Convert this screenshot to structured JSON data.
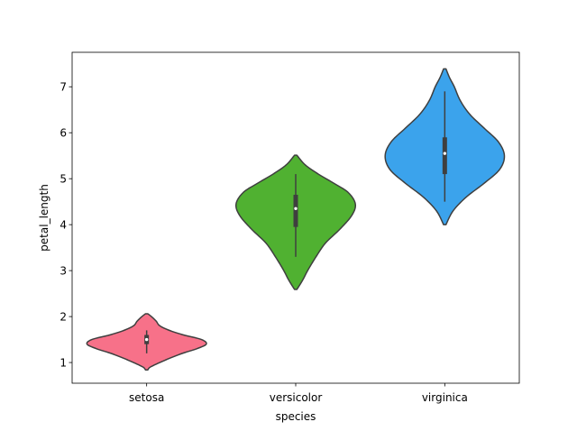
{
  "chart_data": {
    "type": "violin",
    "xlabel": "species",
    "ylabel": "petal_length",
    "categories": [
      "setosa",
      "versicolor",
      "virginica"
    ],
    "y_ticks": [
      1,
      2,
      3,
      4,
      5,
      6,
      7
    ],
    "ylim": [
      0.55,
      7.75
    ],
    "grid": false,
    "series": [
      {
        "category": "setosa",
        "color": "#f77189",
        "y_range": [
          0.84,
          2.06
        ],
        "density": [
          [
            0.84,
            0.02
          ],
          [
            0.9,
            0.06
          ],
          [
            1.0,
            0.22
          ],
          [
            1.1,
            0.4
          ],
          [
            1.2,
            0.6
          ],
          [
            1.3,
            0.84
          ],
          [
            1.4,
            1.0
          ],
          [
            1.5,
            0.92
          ],
          [
            1.6,
            0.62
          ],
          [
            1.7,
            0.38
          ],
          [
            1.8,
            0.22
          ],
          [
            1.9,
            0.16
          ],
          [
            2.0,
            0.08
          ],
          [
            2.06,
            0.02
          ]
        ],
        "q1": 1.4,
        "median": 1.5,
        "q3": 1.6,
        "whisker_low": 1.2,
        "whisker_high": 1.7
      },
      {
        "category": "versicolor",
        "color": "#50b131",
        "y_range": [
          2.59,
          5.51
        ],
        "density": [
          [
            2.59,
            0.02
          ],
          [
            2.8,
            0.12
          ],
          [
            3.0,
            0.2
          ],
          [
            3.3,
            0.34
          ],
          [
            3.6,
            0.5
          ],
          [
            3.9,
            0.74
          ],
          [
            4.2,
            0.94
          ],
          [
            4.45,
            1.0
          ],
          [
            4.7,
            0.88
          ],
          [
            4.9,
            0.64
          ],
          [
            5.1,
            0.38
          ],
          [
            5.3,
            0.16
          ],
          [
            5.51,
            0.02
          ]
        ],
        "q1": 3.95,
        "median": 4.35,
        "q3": 4.65,
        "whisker_low": 3.3,
        "whisker_high": 5.1
      },
      {
        "category": "virginica",
        "color": "#3ba3ec",
        "y_range": [
          4.0,
          7.39
        ],
        "density": [
          [
            4.0,
            0.02
          ],
          [
            4.3,
            0.14
          ],
          [
            4.6,
            0.36
          ],
          [
            4.9,
            0.66
          ],
          [
            5.2,
            0.92
          ],
          [
            5.5,
            1.0
          ],
          [
            5.8,
            0.9
          ],
          [
            6.1,
            0.66
          ],
          [
            6.4,
            0.42
          ],
          [
            6.7,
            0.26
          ],
          [
            7.0,
            0.16
          ],
          [
            7.2,
            0.08
          ],
          [
            7.39,
            0.02
          ]
        ],
        "q1": 5.1,
        "median": 5.55,
        "q3": 5.9,
        "whisker_low": 4.5,
        "whisker_high": 6.9
      }
    ]
  }
}
